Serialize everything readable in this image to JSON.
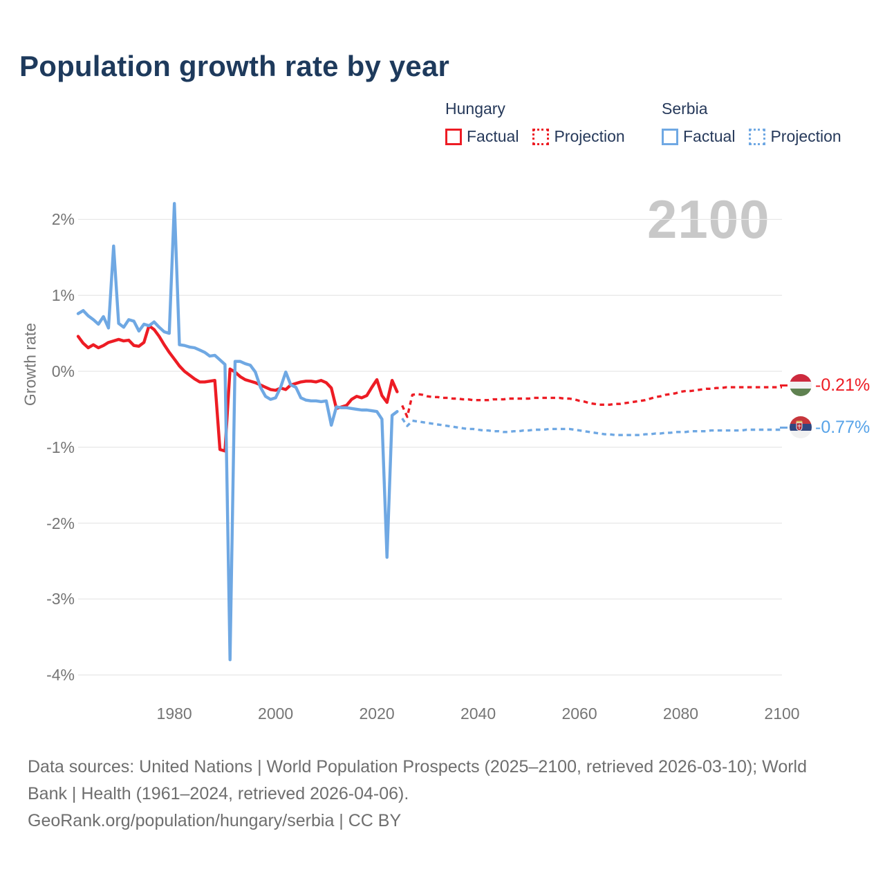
{
  "title": "Population growth rate by year",
  "watermark": "2100",
  "legend": {
    "groups": [
      {
        "name": "Hungary",
        "color": "#ed1c24",
        "items": [
          {
            "label": "Factual",
            "style": "solid"
          },
          {
            "label": "Projection",
            "style": "dotted"
          }
        ]
      },
      {
        "name": "Serbia",
        "color": "#6fa8e3",
        "items": [
          {
            "label": "Factual",
            "style": "solid"
          },
          {
            "label": "Projection",
            "style": "dotted"
          }
        ]
      }
    ]
  },
  "end_labels": [
    {
      "series": "Hungary",
      "value": "-0.21%",
      "color": "#ed1c24",
      "flag": "hungary-flag"
    },
    {
      "series": "Serbia",
      "value": "-0.77%",
      "color": "#57a3e8",
      "flag": "serbia-flag"
    }
  ],
  "footer": {
    "line1": "Data sources: United Nations | World Population Prospects (2025–2100, retrieved 2026-03-10); World",
    "line2": "Bank | Health (1961–2024, retrieved 2026-04-06).",
    "line3": "GeoRank.org/population/hungary/serbia | CC BY"
  },
  "chart_data": {
    "type": "line",
    "title": "Population growth rate by year",
    "xlabel": "",
    "ylabel": "Growth rate",
    "xlim": [
      1961,
      2100
    ],
    "ylim": [
      -4.35,
      2.35
    ],
    "grid": true,
    "legend_position": "top-right",
    "x_ticks": [
      1980,
      2000,
      2020,
      2040,
      2060,
      2080,
      2100
    ],
    "y_ticks": [
      {
        "value": 2,
        "label": "2%"
      },
      {
        "value": 1,
        "label": "1%"
      },
      {
        "value": 0,
        "label": "0%"
      },
      {
        "value": -1,
        "label": "-1%"
      },
      {
        "value": -2,
        "label": "-2%"
      },
      {
        "value": -3,
        "label": "-3%"
      },
      {
        "value": -4,
        "label": "-4%"
      }
    ],
    "unit": "%",
    "series": [
      {
        "name": "Hungary Factual",
        "color": "#ed1c24",
        "dash": "solid",
        "start_year": 1961,
        "values": [
          0.46,
          0.37,
          0.31,
          0.35,
          0.31,
          0.34,
          0.38,
          0.4,
          0.42,
          0.4,
          0.41,
          0.34,
          0.33,
          0.38,
          0.6,
          0.55,
          0.46,
          0.35,
          0.25,
          0.16,
          0.07,
          0.0,
          -0.05,
          -0.1,
          -0.14,
          -0.14,
          -0.13,
          -0.12,
          -1.03,
          -1.05,
          0.03,
          -0.01,
          -0.07,
          -0.11,
          -0.13,
          -0.15,
          -0.18,
          -0.21,
          -0.24,
          -0.25,
          -0.22,
          -0.24,
          -0.18,
          -0.16,
          -0.14,
          -0.13,
          -0.13,
          -0.14,
          -0.12,
          -0.15,
          -0.22,
          -0.49,
          -0.47,
          -0.45,
          -0.37,
          -0.33,
          -0.35,
          -0.32,
          -0.21,
          -0.11,
          -0.32,
          -0.41,
          -0.12,
          -0.27
        ]
      },
      {
        "name": "Serbia Factual",
        "color": "#6fa8e3",
        "dash": "solid",
        "start_year": 1961,
        "values": [
          0.76,
          0.8,
          0.73,
          0.68,
          0.62,
          0.72,
          0.57,
          1.65,
          0.63,
          0.58,
          0.68,
          0.66,
          0.53,
          0.62,
          0.6,
          0.65,
          0.58,
          0.52,
          0.5,
          2.21,
          0.35,
          0.34,
          0.32,
          0.31,
          0.28,
          0.25,
          0.2,
          0.21,
          0.15,
          0.09,
          -3.8,
          0.13,
          0.13,
          0.1,
          0.08,
          -0.01,
          -0.21,
          -0.33,
          -0.37,
          -0.35,
          -0.21,
          -0.01,
          -0.18,
          -0.21,
          -0.35,
          -0.38,
          -0.39,
          -0.39,
          -0.4,
          -0.39,
          -0.71,
          -0.47,
          -0.48,
          -0.48,
          -0.49,
          -0.5,
          -0.51,
          -0.51,
          -0.52,
          -0.53,
          -0.63,
          -2.45,
          -0.58,
          -0.53
        ]
      },
      {
        "name": "Hungary Projection",
        "color": "#ed1c24",
        "dash": "dotted",
        "start_year": 2025,
        "values": [
          -0.45,
          -0.6,
          -0.31,
          -0.3,
          -0.31,
          -0.33,
          -0.34,
          -0.34,
          -0.35,
          -0.35,
          -0.36,
          -0.36,
          -0.37,
          -0.37,
          -0.38,
          -0.38,
          -0.38,
          -0.38,
          -0.37,
          -0.37,
          -0.37,
          -0.36,
          -0.36,
          -0.36,
          -0.36,
          -0.36,
          -0.35,
          -0.35,
          -0.35,
          -0.35,
          -0.35,
          -0.35,
          -0.36,
          -0.36,
          -0.37,
          -0.39,
          -0.4,
          -0.42,
          -0.43,
          -0.44,
          -0.44,
          -0.44,
          -0.43,
          -0.43,
          -0.42,
          -0.41,
          -0.4,
          -0.39,
          -0.38,
          -0.36,
          -0.34,
          -0.33,
          -0.31,
          -0.3,
          -0.29,
          -0.27,
          -0.26,
          -0.26,
          -0.25,
          -0.24,
          -0.23,
          -0.23,
          -0.22,
          -0.22,
          -0.21,
          -0.21,
          -0.21,
          -0.21,
          -0.21,
          -0.21,
          -0.21,
          -0.21,
          -0.21,
          -0.21,
          -0.21,
          -0.21
        ]
      },
      {
        "name": "Serbia Projection",
        "color": "#6fa8e3",
        "dash": "dotted",
        "start_year": 2025,
        "values": [
          -0.62,
          -0.72,
          -0.65,
          -0.66,
          -0.67,
          -0.68,
          -0.69,
          -0.7,
          -0.71,
          -0.72,
          -0.73,
          -0.74,
          -0.75,
          -0.76,
          -0.76,
          -0.77,
          -0.78,
          -0.78,
          -0.79,
          -0.79,
          -0.8,
          -0.8,
          -0.79,
          -0.79,
          -0.78,
          -0.78,
          -0.77,
          -0.77,
          -0.77,
          -0.76,
          -0.76,
          -0.76,
          -0.76,
          -0.76,
          -0.77,
          -0.78,
          -0.79,
          -0.8,
          -0.81,
          -0.82,
          -0.83,
          -0.83,
          -0.84,
          -0.84,
          -0.84,
          -0.84,
          -0.84,
          -0.84,
          -0.83,
          -0.83,
          -0.82,
          -0.82,
          -0.81,
          -0.81,
          -0.8,
          -0.8,
          -0.8,
          -0.79,
          -0.79,
          -0.79,
          -0.79,
          -0.78,
          -0.78,
          -0.78,
          -0.78,
          -0.78,
          -0.78,
          -0.78,
          -0.77,
          -0.77,
          -0.77,
          -0.77,
          -0.77,
          -0.77,
          -0.77,
          -0.77
        ]
      }
    ]
  }
}
